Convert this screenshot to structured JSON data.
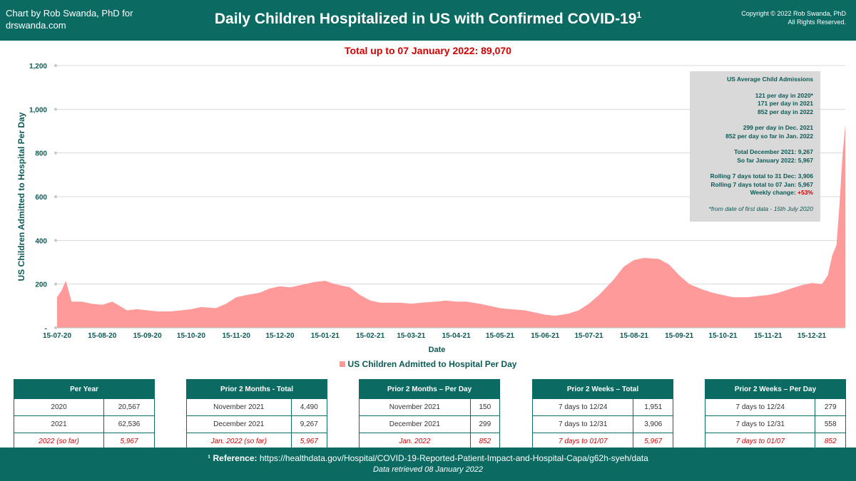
{
  "header": {
    "credit": "Chart by Rob Swanda, PhD for drswanda.com",
    "title": "Daily Children Hospitalized in US with Confirmed COVID-19",
    "title_sup": "1",
    "copyright_line1": "Copyright © 2022 Rob Swanda, PhD",
    "copyright_line2": "All Rights Reserved."
  },
  "total_line": "Total up to 07 January 2022: 89,070",
  "infobox": {
    "title": "US Average Child Admissions",
    "l1": "121 per day in 2020*",
    "l2": "171 per day in 2021",
    "l3": "852 per day in 2022",
    "l4": "299 per day in Dec. 2021",
    "l5": "852 per day so far in Jan. 2022",
    "l6": "Total December 2021: 9,267",
    "l7": "So far January 2022: 5,967",
    "l8": "Rolling 7 days total to 31 Dec: 3,906",
    "l9": "Rolling 7 days total to 07 Jan: 5,967",
    "l10_label": "Weekly change: ",
    "l10_value": "+53%",
    "note": "*from date of first data - 15th July 2020"
  },
  "legend": "US Children Admitted to Hospital Per Day",
  "tables": [
    {
      "title": "Per Year",
      "rows": [
        [
          "2020",
          "20,567"
        ],
        [
          "2021",
          "62,536"
        ]
      ],
      "red_row": [
        "2022 (so far)",
        "5,967"
      ]
    },
    {
      "title": "Prior 2 Months - Total",
      "rows": [
        [
          "November 2021",
          "4,490"
        ],
        [
          "December 2021",
          "9,267"
        ]
      ],
      "red_row": [
        "Jan. 2022 (so far)",
        "5,967"
      ]
    },
    {
      "title": "Prior 2 Months – Per Day",
      "rows": [
        [
          "November 2021",
          "150"
        ],
        [
          "December 2021",
          "299"
        ]
      ],
      "red_row": [
        "Jan. 2022",
        "852"
      ]
    },
    {
      "title": "Prior 2 Weeks – Total",
      "rows": [
        [
          "7 days to 12/24",
          "1,951"
        ],
        [
          "7 days to 12/31",
          "3,906"
        ]
      ],
      "red_row": [
        "7 days to 01/07",
        "5,967"
      ]
    },
    {
      "title": "Prior 2 Weeks – Per Day",
      "rows": [
        [
          "7 days to 12/24",
          "279"
        ],
        [
          "7 days to 12/31",
          "558"
        ]
      ],
      "red_row": [
        "7 days to 01/07",
        "852"
      ]
    }
  ],
  "footer": {
    "ref_label": "¹ Reference:",
    "ref_url": "https://healthdata.gov/Hospital/COVID-19-Reported-Patient-Impact-and-Hospital-Capa/g62h-syeh/data",
    "retrieved": "Data retrieved 08 January 2022"
  },
  "colors": {
    "header": "#0b6b63",
    "area": "#ff9a9a",
    "red": "#d40000",
    "axis_text": "#0b5a55"
  },
  "chart_data": {
    "type": "area",
    "title": "Total up to 07 January 2022: 89,070",
    "xlabel": "Date",
    "ylabel": "US Children Admitted to Hospital Per Day",
    "ylim": [
      0,
      1200
    ],
    "yticks": [
      0,
      200,
      400,
      600,
      800,
      1000,
      1200
    ],
    "ytick_labels": [
      "-",
      "200",
      "400",
      "600",
      "800",
      "1,000",
      "1,200"
    ],
    "xlim": [
      "2020-07-15",
      "2022-01-07"
    ],
    "xtick_labels": [
      "15-07-20",
      "15-08-20",
      "15-09-20",
      "15-10-20",
      "15-11-20",
      "15-12-20",
      "15-01-21",
      "15-02-21",
      "15-03-21",
      "15-04-21",
      "15-05-21",
      "15-06-21",
      "15-07-21",
      "15-08-21",
      "15-09-21",
      "15-10-21",
      "15-11-21",
      "15-12-21"
    ],
    "xtick_dates": [
      "2020-07-15",
      "2020-08-15",
      "2020-09-15",
      "2020-10-15",
      "2020-11-15",
      "2020-12-15",
      "2021-01-15",
      "2021-02-15",
      "2021-03-15",
      "2021-04-15",
      "2021-05-15",
      "2021-06-15",
      "2021-07-15",
      "2021-08-15",
      "2021-09-15",
      "2021-10-15",
      "2021-11-15",
      "2021-12-15"
    ],
    "grid": true,
    "legend_position": "bottom",
    "series": [
      {
        "name": "US Children Admitted to Hospital Per Day",
        "x": [
          "2020-07-15",
          "2020-07-18",
          "2020-07-21",
          "2020-07-25",
          "2020-08-01",
          "2020-08-08",
          "2020-08-15",
          "2020-08-22",
          "2020-09-01",
          "2020-09-08",
          "2020-09-15",
          "2020-09-22",
          "2020-10-01",
          "2020-10-08",
          "2020-10-15",
          "2020-10-22",
          "2020-11-01",
          "2020-11-08",
          "2020-11-15",
          "2020-11-22",
          "2020-12-01",
          "2020-12-08",
          "2020-12-15",
          "2020-12-22",
          "2021-01-01",
          "2021-01-08",
          "2021-01-15",
          "2021-01-22",
          "2021-02-01",
          "2021-02-08",
          "2021-02-15",
          "2021-02-22",
          "2021-03-01",
          "2021-03-08",
          "2021-03-15",
          "2021-03-22",
          "2021-04-01",
          "2021-04-08",
          "2021-04-15",
          "2021-04-22",
          "2021-05-01",
          "2021-05-08",
          "2021-05-15",
          "2021-05-22",
          "2021-06-01",
          "2021-06-08",
          "2021-06-15",
          "2021-06-22",
          "2021-07-01",
          "2021-07-08",
          "2021-07-15",
          "2021-07-22",
          "2021-08-01",
          "2021-08-08",
          "2021-08-15",
          "2021-08-22",
          "2021-09-01",
          "2021-09-08",
          "2021-09-15",
          "2021-09-22",
          "2021-10-01",
          "2021-10-08",
          "2021-10-15",
          "2021-10-22",
          "2021-11-01",
          "2021-11-08",
          "2021-11-15",
          "2021-11-22",
          "2021-12-01",
          "2021-12-08",
          "2021-12-15",
          "2021-12-22",
          "2021-12-26",
          "2021-12-29",
          "2022-01-01",
          "2022-01-03",
          "2022-01-05",
          "2022-01-07"
        ],
        "values": [
          140,
          170,
          215,
          120,
          120,
          110,
          105,
          120,
          80,
          85,
          80,
          75,
          75,
          80,
          85,
          95,
          90,
          110,
          140,
          150,
          160,
          180,
          190,
          185,
          200,
          210,
          215,
          200,
          185,
          150,
          125,
          115,
          115,
          115,
          110,
          115,
          120,
          125,
          120,
          120,
          110,
          100,
          90,
          85,
          80,
          70,
          60,
          55,
          65,
          80,
          110,
          150,
          220,
          280,
          310,
          320,
          315,
          290,
          240,
          200,
          175,
          160,
          150,
          140,
          140,
          145,
          150,
          160,
          180,
          195,
          205,
          200,
          240,
          330,
          380,
          560,
          780,
          930
        ]
      }
    ]
  }
}
